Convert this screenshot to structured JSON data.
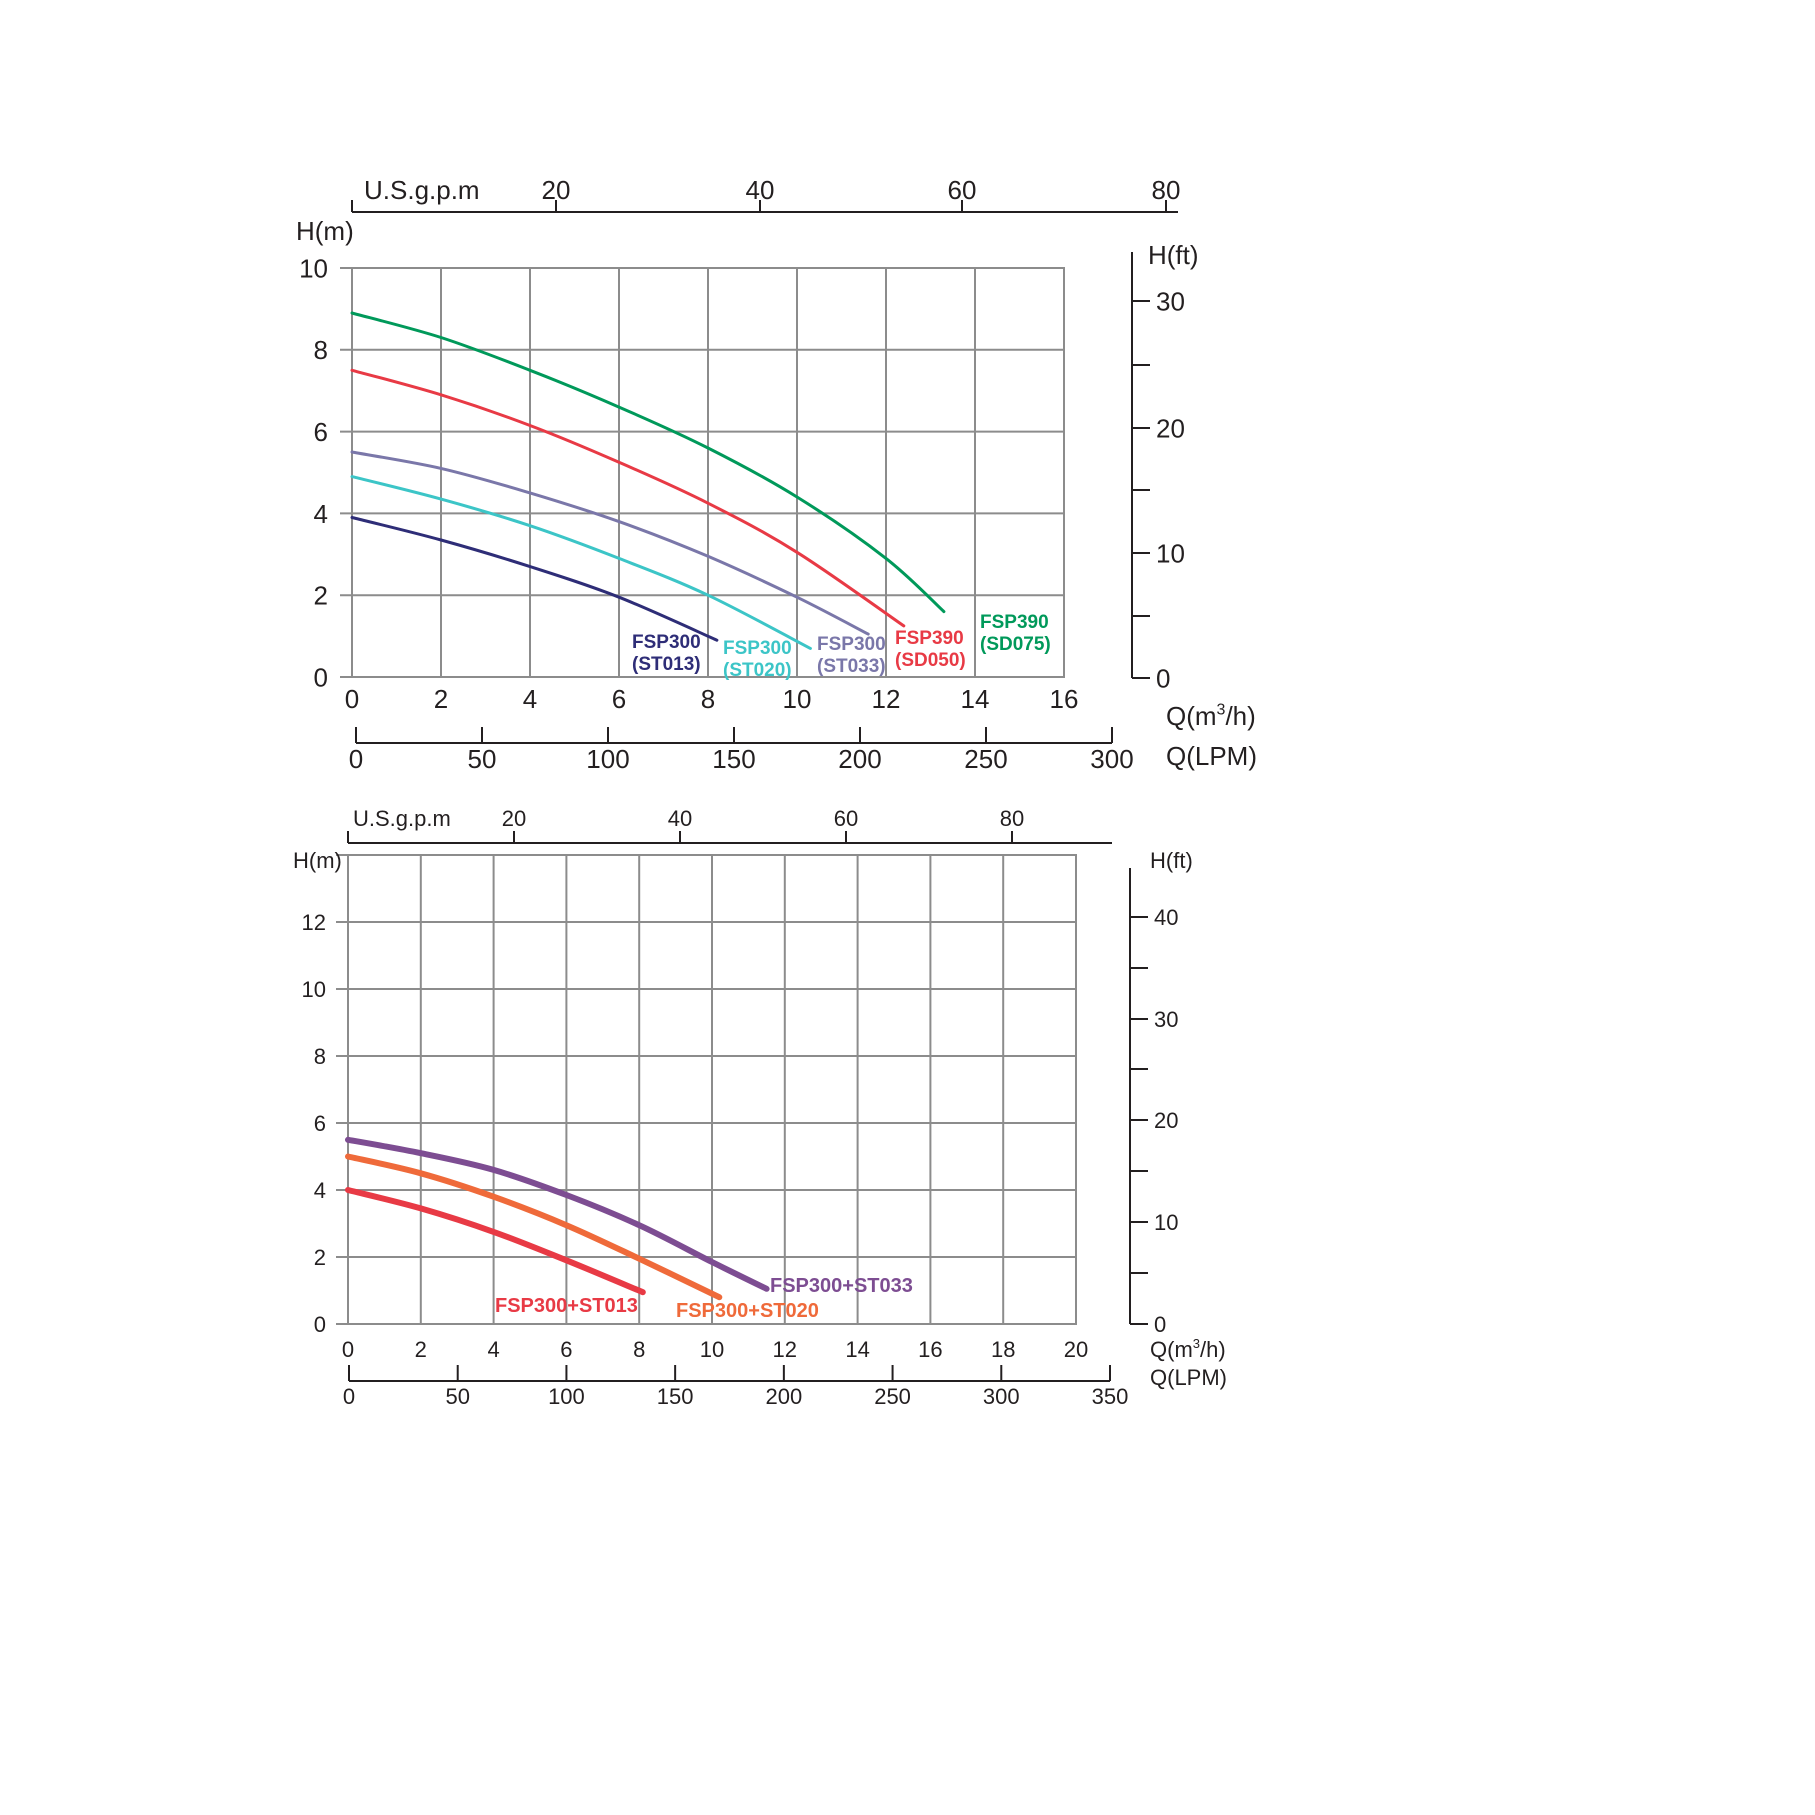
{
  "chart_data": [
    {
      "type": "line",
      "y_label": "H(m)",
      "y_range": [
        0,
        10
      ],
      "y_ticks": [
        "0",
        "2",
        "4",
        "6",
        "8",
        "10"
      ],
      "x_label": "Q(m³/h)",
      "x_range": [
        0,
        16
      ],
      "x_ticks": [
        "0",
        "2",
        "4",
        "6",
        "8",
        "10",
        "12",
        "14",
        "16"
      ],
      "top_axis_label": "U.S.g.p.m",
      "top_ticks": [
        "20",
        "40",
        "60",
        "80"
      ],
      "lpm_label": "Q(LPM)",
      "lpm_ticks": [
        "0",
        "50",
        "100",
        "150",
        "200",
        "250",
        "300"
      ],
      "ft_label": "H(ft)",
      "ft_ticks": [
        "0",
        "10",
        "20",
        "30"
      ],
      "grid": true,
      "series": [
        {
          "name": "FSP300 (ST013)",
          "label_lines": [
            "FSP300",
            "(ST013)"
          ],
          "color": "#2e2d77",
          "x": [
            0,
            2,
            4,
            6,
            8.2
          ],
          "y": [
            3.9,
            3.35,
            2.7,
            1.95,
            0.9
          ]
        },
        {
          "name": "FSP300 (ST020)",
          "label_lines": [
            "FSP300",
            "(ST020)"
          ],
          "color": "#3cc5c7",
          "x": [
            0,
            2,
            4,
            6,
            8,
            10.3
          ],
          "y": [
            4.9,
            4.35,
            3.7,
            2.9,
            2.0,
            0.7
          ]
        },
        {
          "name": "FSP300 (ST033)",
          "label_lines": [
            "FSP300",
            "(ST033)"
          ],
          "color": "#7a77a9",
          "x": [
            0,
            2,
            4,
            6,
            8,
            10,
            11.6
          ],
          "y": [
            5.5,
            5.1,
            4.5,
            3.8,
            2.95,
            1.95,
            1.05
          ]
        },
        {
          "name": "FSP390 (SD050)",
          "label_lines": [
            "FSP390",
            "(SD050)"
          ],
          "color": "#e83a45",
          "x": [
            0,
            2,
            4,
            6,
            8,
            10,
            12.4
          ],
          "y": [
            7.5,
            6.9,
            6.15,
            5.25,
            4.25,
            3.05,
            1.25
          ]
        },
        {
          "name": "FSP390 (SD075)",
          "label_lines": [
            "FSP390",
            "(SD075)"
          ],
          "color": "#00995a",
          "x": [
            0,
            2,
            4,
            6,
            8,
            10,
            12,
            13.3
          ],
          "y": [
            8.9,
            8.3,
            7.5,
            6.6,
            5.6,
            4.4,
            2.9,
            1.6
          ]
        }
      ]
    },
    {
      "type": "line",
      "y_label": "H(m)",
      "y_range": [
        0,
        14
      ],
      "y_ticks": [
        "0",
        "2",
        "4",
        "6",
        "8",
        "10",
        "12"
      ],
      "x_label": "Q(m³/h)",
      "x_range": [
        0,
        20
      ],
      "x_ticks": [
        "0",
        "2",
        "4",
        "6",
        "8",
        "10",
        "12",
        "14",
        "16",
        "18",
        "20"
      ],
      "top_axis_label": "U.S.g.p.m",
      "top_ticks": [
        "20",
        "40",
        "60",
        "80"
      ],
      "lpm_label": "Q(LPM)",
      "lpm_ticks": [
        "0",
        "50",
        "100",
        "150",
        "200",
        "250",
        "300",
        "350"
      ],
      "ft_label": "H(ft)",
      "ft_ticks": [
        "0",
        "10",
        "20",
        "30",
        "40"
      ],
      "grid": true,
      "series": [
        {
          "name": "FSP300+ST013",
          "label_lines": [
            "FSP300+ST013"
          ],
          "color": "#e83a45",
          "x": [
            0,
            2,
            4,
            6,
            8.1
          ],
          "y": [
            4.0,
            3.45,
            2.75,
            1.9,
            0.95
          ]
        },
        {
          "name": "FSP300+ST020",
          "label_lines": [
            "FSP300+ST020"
          ],
          "color": "#ef6a3a",
          "x": [
            0,
            2,
            4,
            6,
            8,
            10.2
          ],
          "y": [
            5.0,
            4.5,
            3.8,
            2.95,
            1.95,
            0.8
          ]
        },
        {
          "name": "FSP300+ST033",
          "label_lines": [
            "FSP300+ST033"
          ],
          "color": "#7d4d92",
          "x": [
            0,
            2,
            4,
            6,
            8,
            10,
            11.5
          ],
          "y": [
            5.5,
            5.1,
            4.6,
            3.85,
            2.95,
            1.85,
            1.05
          ]
        }
      ]
    }
  ]
}
